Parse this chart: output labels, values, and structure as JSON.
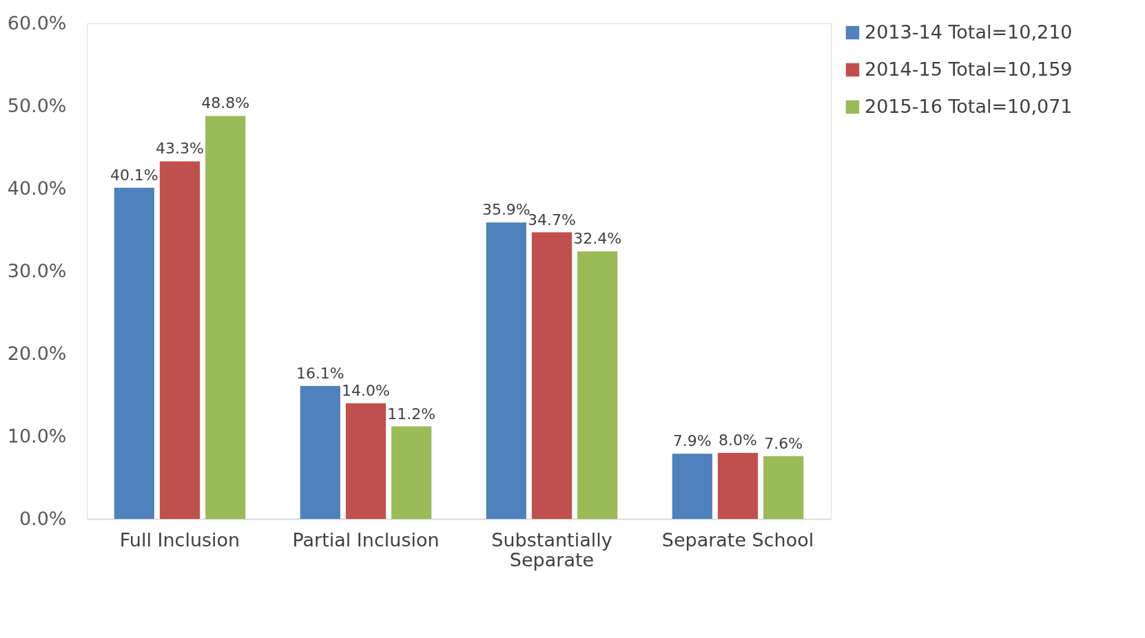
{
  "chart_data": {
    "type": "bar",
    "categories": [
      "Full Inclusion",
      "Partial Inclusion",
      "Substantially Separate",
      "Separate School"
    ],
    "series": [
      {
        "name": "2013-14 Total=10,210",
        "color": "#4f81bd",
        "values": [
          40.1,
          16.1,
          35.9,
          7.9
        ],
        "value_labels": [
          "40.1%",
          "16.1%",
          "35.9%",
          "7.9%"
        ]
      },
      {
        "name": "2014-15 Total=10,159",
        "color": "#c0504d",
        "values": [
          43.3,
          14.0,
          34.7,
          8.0
        ],
        "value_labels": [
          "43.3%",
          "14.0%",
          "34.7%",
          "8.0%"
        ]
      },
      {
        "name": "2015-16 Total=10,071",
        "color": "#9bbb59",
        "values": [
          48.8,
          11.2,
          32.4,
          7.6
        ],
        "value_labels": [
          "48.8%",
          "11.2%",
          "32.4%",
          "7.6%"
        ]
      }
    ],
    "ylim": [
      0,
      60
    ],
    "yticks": [
      {
        "value": 0,
        "label": "0.0%"
      },
      {
        "value": 10,
        "label": "10.0%"
      },
      {
        "value": 20,
        "label": "20.0%"
      },
      {
        "value": 30,
        "label": "30.0%"
      },
      {
        "value": 40,
        "label": "40.0%"
      },
      {
        "value": 50,
        "label": "50.0%"
      },
      {
        "value": 60,
        "label": "60.0%"
      }
    ],
    "grid": false,
    "legend": "right"
  }
}
